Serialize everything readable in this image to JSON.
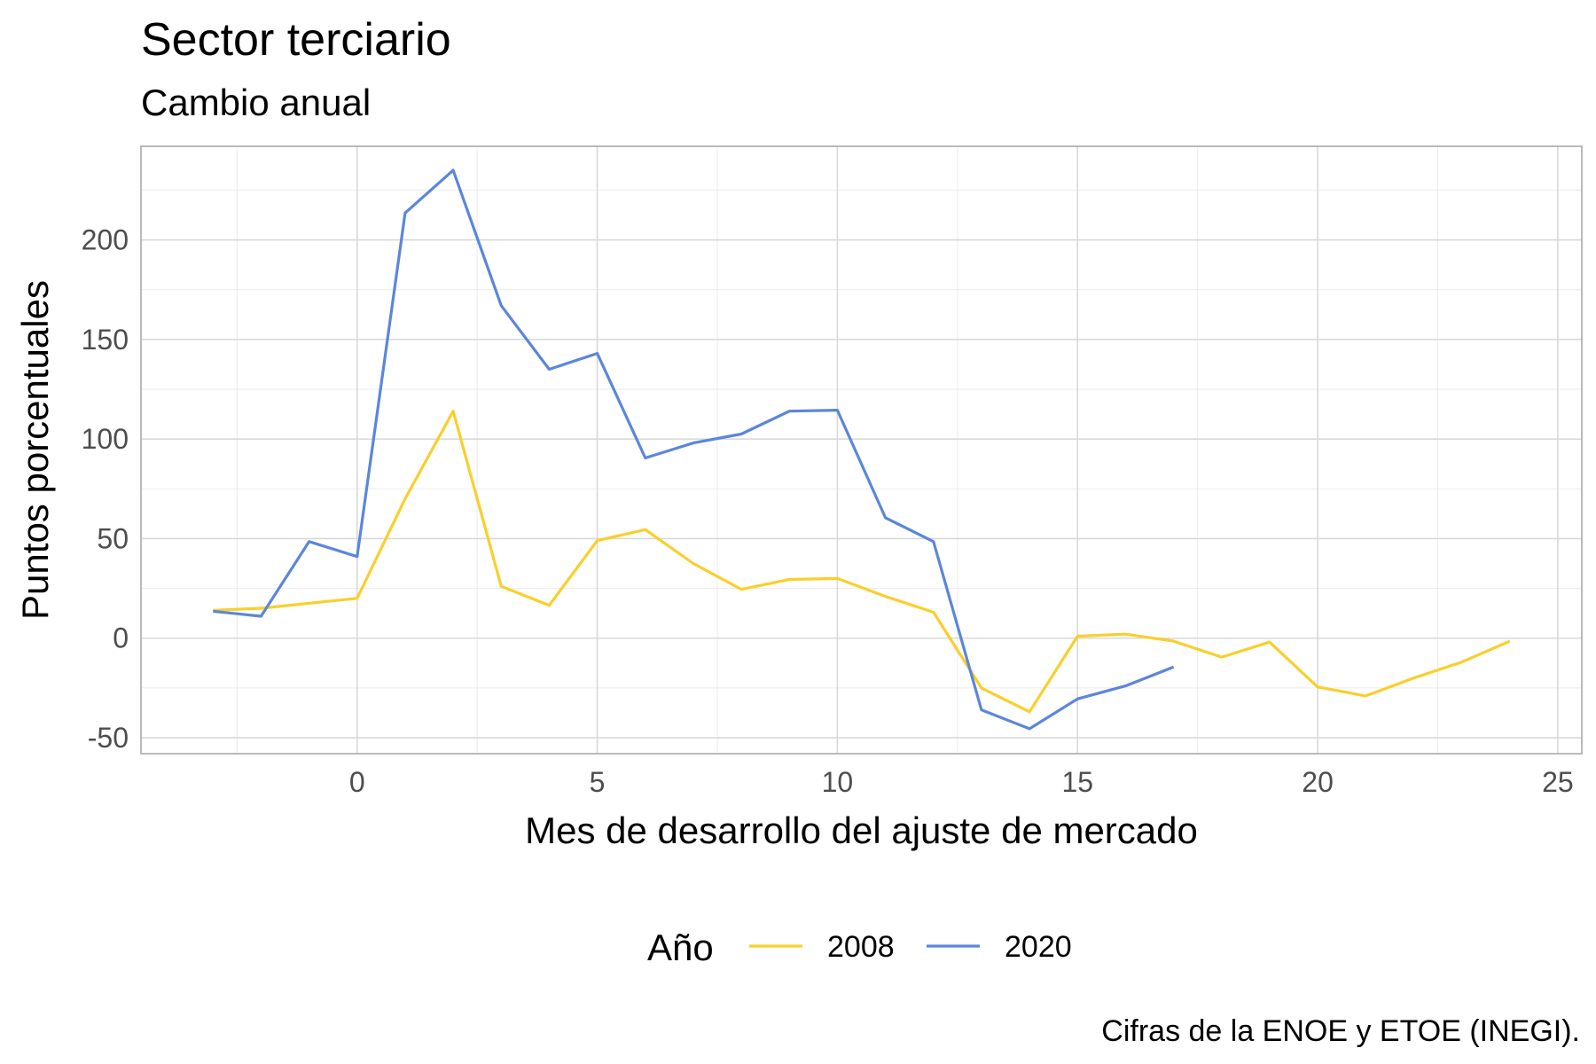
{
  "chart_data": {
    "type": "line",
    "title": "Sector terciario",
    "subtitle": "Cambio anual",
    "xlabel": "Mes de desarrollo del ajuste de mercado",
    "ylabel": "Puntos porcentuales",
    "caption": "Cifras de la ENOE y ETOE (INEGI).",
    "xlim": [
      -4.5,
      25.5
    ],
    "ylim": [
      -58,
      247
    ],
    "x_ticks": [
      0,
      5,
      10,
      15,
      20,
      25
    ],
    "x_tick_labels": [
      "0",
      "5",
      "10",
      "15",
      "20",
      "25"
    ],
    "y_ticks": [
      -50,
      0,
      50,
      100,
      150,
      200
    ],
    "y_tick_labels": [
      "-50",
      "0",
      "50",
      "100",
      "150",
      "200"
    ],
    "grid": true,
    "legend": {
      "title": "Año",
      "position": "bottom"
    },
    "series": [
      {
        "name": "2008",
        "color": "#f9cf2c",
        "x": [
          -3,
          -2,
          -1,
          0,
          1,
          2,
          3,
          4,
          5,
          6,
          7,
          8,
          9,
          10,
          11,
          12,
          13,
          14,
          15,
          16,
          17,
          18,
          19,
          20,
          21,
          22,
          23,
          24
        ],
        "values": [
          14,
          15,
          17.5,
          20,
          70,
          114,
          26,
          16.5,
          49,
          54.5,
          37.5,
          24.5,
          29.5,
          30,
          21,
          13,
          -25,
          -37,
          1,
          2,
          -1.5,
          -9.5,
          -2,
          -24.5,
          -29,
          -20,
          -12,
          -1.5
        ]
      },
      {
        "name": "2020",
        "color": "#5b86dc",
        "x": [
          -3,
          -2,
          -1,
          0,
          1,
          2,
          3,
          4,
          5,
          6,
          7,
          8,
          9,
          10,
          11,
          12,
          13,
          14,
          15,
          16,
          17
        ],
        "values": [
          13.5,
          11,
          48.5,
          41,
          213.5,
          235,
          167,
          135,
          143,
          90.5,
          98,
          102.5,
          114,
          114.5,
          60.5,
          48.5,
          -36,
          -45.5,
          -30.5,
          -24,
          -14.5
        ]
      }
    ]
  }
}
